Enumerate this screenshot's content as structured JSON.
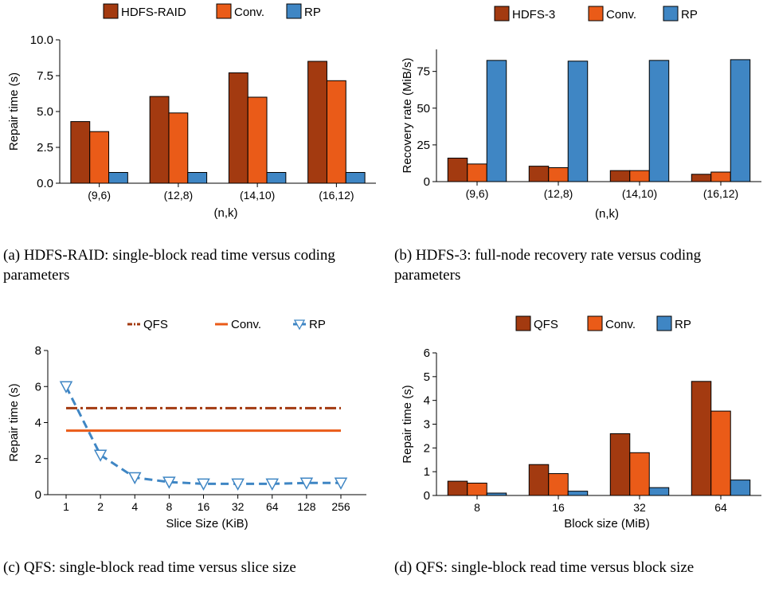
{
  "colors": {
    "c1": "#a33a10",
    "c2": "#ea5b18",
    "c3": "#3f86c4"
  },
  "chart_data": [
    {
      "type": "bar",
      "caption": "(a) HDFS-RAID: single-block read time versus coding parameters",
      "xlabel": "(n,k)",
      "ylabel": "Repair time (s)",
      "categories": [
        "(9,6)",
        "(12,8)",
        "(14,10)",
        "(16,12)"
      ],
      "ylim": [
        0,
        10
      ],
      "yticks": [
        "0.0",
        "2.5",
        "5.0",
        "7.5",
        "10.0"
      ],
      "legend_position": "top",
      "series": [
        {
          "name": "HDFS-RAID",
          "values": [
            4.3,
            6.05,
            7.7,
            8.5
          ]
        },
        {
          "name": "Conv.",
          "values": [
            3.6,
            4.9,
            6.0,
            7.15
          ]
        },
        {
          "name": "RP",
          "values": [
            0.75,
            0.75,
            0.75,
            0.75
          ]
        }
      ]
    },
    {
      "type": "bar",
      "caption": "(b) HDFS-3: full-node recovery rate versus coding parameters",
      "xlabel": "(n,k)",
      "ylabel": "Recovery rate (MiB/s)",
      "categories": [
        "(9,6)",
        "(12,8)",
        "(14,10)",
        "(16,12)"
      ],
      "ylim": [
        0,
        90
      ],
      "yticks": [
        "0",
        "25",
        "50",
        "75"
      ],
      "legend_position": "top",
      "series": [
        {
          "name": "HDFS-3",
          "values": [
            16,
            10.5,
            7.5,
            5
          ]
        },
        {
          "name": "Conv.",
          "values": [
            12,
            9.5,
            7.5,
            6.5
          ]
        },
        {
          "name": "RP",
          "values": [
            82.5,
            82,
            82.5,
            83
          ]
        }
      ]
    },
    {
      "type": "line",
      "caption": "(c) QFS: single-block read time versus slice size",
      "xlabel": "Slice Size (KiB)",
      "ylabel": "Repair time (s)",
      "x": [
        "1",
        "2",
        "4",
        "8",
        "16",
        "32",
        "64",
        "128",
        "256"
      ],
      "ylim": [
        0,
        8
      ],
      "yticks": [
        "0",
        "2",
        "4",
        "6",
        "8"
      ],
      "legend_position": "top",
      "series": [
        {
          "name": "QFS",
          "values": [
            4.8,
            4.8,
            4.8,
            4.8,
            4.8,
            4.8,
            4.8,
            4.8,
            4.8
          ]
        },
        {
          "name": "Conv.",
          "values": [
            3.55,
            3.55,
            3.55,
            3.55,
            3.55,
            3.55,
            3.55,
            3.55,
            3.55
          ]
        },
        {
          "name": "RP",
          "values": [
            6.0,
            2.2,
            0.95,
            0.7,
            0.6,
            0.6,
            0.6,
            0.65,
            0.65
          ]
        }
      ]
    },
    {
      "type": "bar",
      "caption": "(d) QFS: single-block read time versus block size",
      "xlabel": "Block size (MiB)",
      "ylabel": "Repair time (s)",
      "categories": [
        "8",
        "16",
        "32",
        "64"
      ],
      "ylim": [
        0,
        6
      ],
      "yticks": [
        "0",
        "1",
        "2",
        "3",
        "4",
        "5",
        "6"
      ],
      "legend_position": "top",
      "series": [
        {
          "name": "QFS",
          "values": [
            0.6,
            1.3,
            2.6,
            4.8
          ]
        },
        {
          "name": "Conv.",
          "values": [
            0.52,
            0.92,
            1.8,
            3.55
          ]
        },
        {
          "name": "RP",
          "values": [
            0.1,
            0.18,
            0.33,
            0.65
          ]
        }
      ]
    }
  ]
}
